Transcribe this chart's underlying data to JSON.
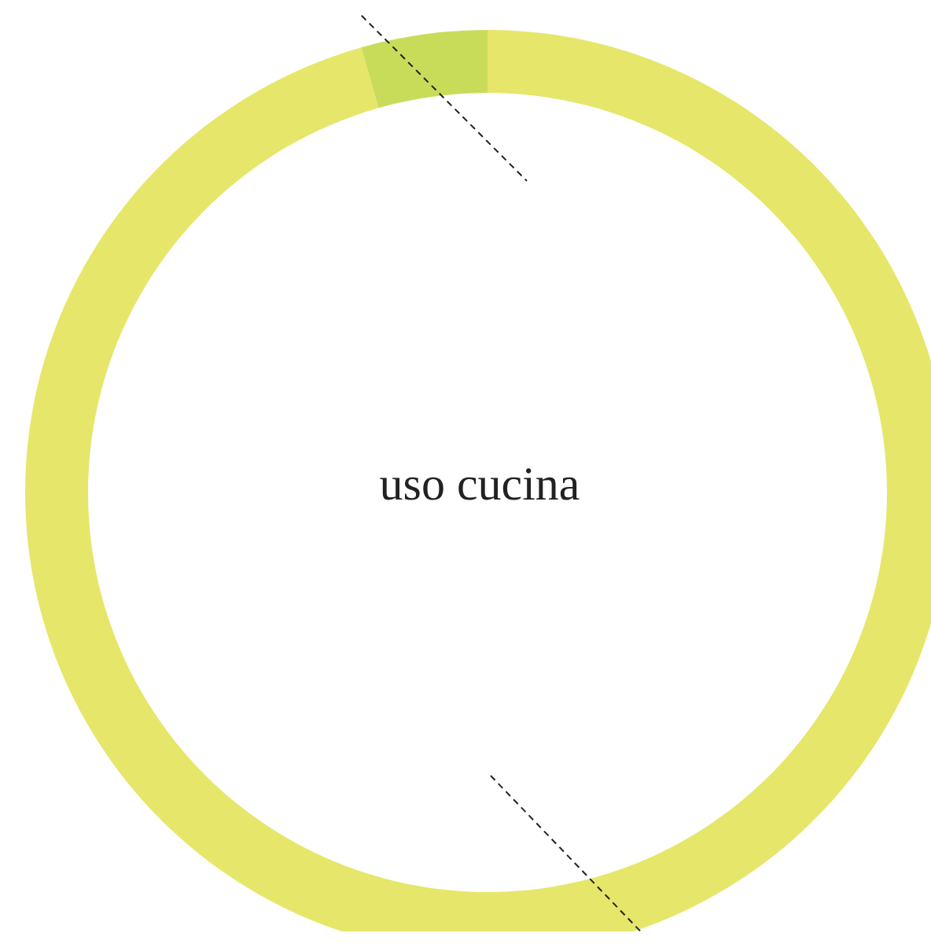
{
  "chart_data": {
    "type": "donut",
    "title": "uso cucina",
    "categories": [
      null,
      null
    ],
    "values": [
      95.6,
      4.4
    ],
    "colors": [
      "#e6e66a",
      "#c8dc5a"
    ]
  }
}
